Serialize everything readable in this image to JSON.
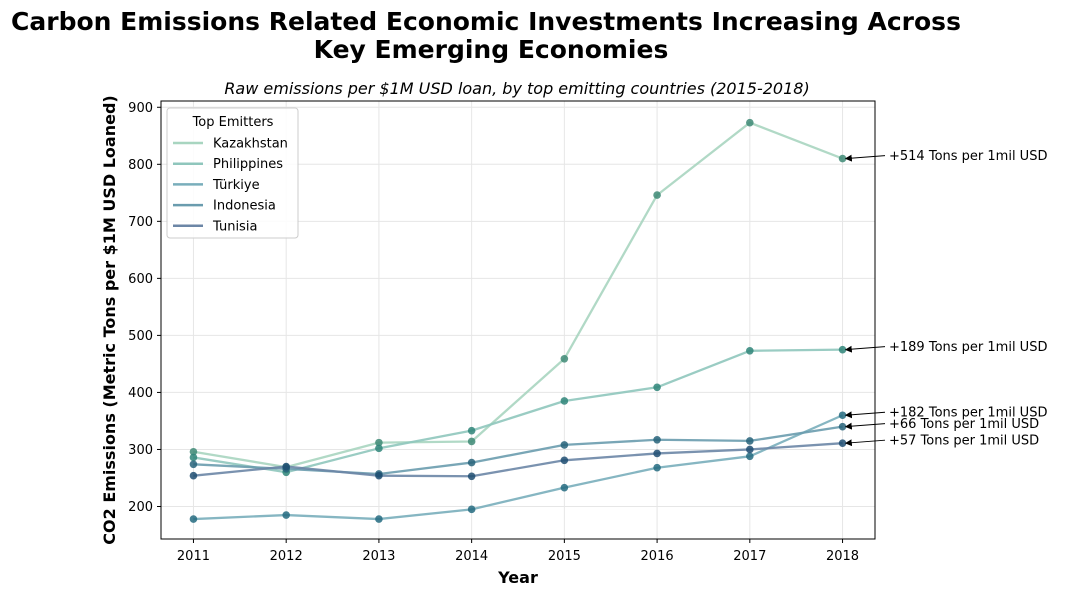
{
  "chart_data": {
    "type": "line",
    "title_lines": [
      "Carbon Emissions Related Economic Investments Increasing Across",
      "Key Emerging Economies"
    ],
    "subtitle": "Raw emissions per $1M USD loan, by top emitting countries (2015-2018)",
    "xlabel": "Year",
    "ylabel": "CO2 Emissions (Metric Tons per $1M USD Loaned)",
    "x": [
      2011,
      2012,
      2013,
      2014,
      2015,
      2016,
      2017,
      2018
    ],
    "xlim": [
      2010.65,
      2018.35
    ],
    "ylim": [
      143,
      911
    ],
    "yticks": [
      200,
      300,
      400,
      500,
      600,
      700,
      800,
      900
    ],
    "grid": true,
    "legend": {
      "title": "Top Emitters",
      "position": "top-left"
    },
    "series": [
      {
        "name": "Kazakhstan",
        "color": "#a8d5c0",
        "marker": "#3e8a76",
        "values": [
          296,
          269,
          312,
          314,
          459,
          746,
          873,
          810
        ],
        "annotation": "+514 Tons per 1mil USD"
      },
      {
        "name": "Philippines",
        "color": "#8fc6bc",
        "marker": "#2f8579",
        "values": [
          286,
          260,
          302,
          333,
          385,
          409,
          473,
          475
        ],
        "annotation": "+189 Tons per 1mil USD"
      },
      {
        "name": "Türkiye",
        "color": "#79aebb",
        "marker": "#246b80",
        "values": [
          178,
          185,
          178,
          195,
          233,
          268,
          288,
          360
        ],
        "annotation": "+182 Tons per 1mil USD"
      },
      {
        "name": "Indonesia",
        "color": "#6a9cae",
        "marker": "#27637a",
        "values": [
          274,
          266,
          257,
          277,
          308,
          317,
          315,
          340
        ],
        "annotation": "+66 Tons per 1mil USD"
      },
      {
        "name": "Tunisia",
        "color": "#6c86a6",
        "marker": "#1f4e72",
        "values": [
          254,
          270,
          254,
          253,
          281,
          293,
          300,
          311
        ],
        "annotation": "+57 Tons per 1mil USD"
      }
    ]
  }
}
